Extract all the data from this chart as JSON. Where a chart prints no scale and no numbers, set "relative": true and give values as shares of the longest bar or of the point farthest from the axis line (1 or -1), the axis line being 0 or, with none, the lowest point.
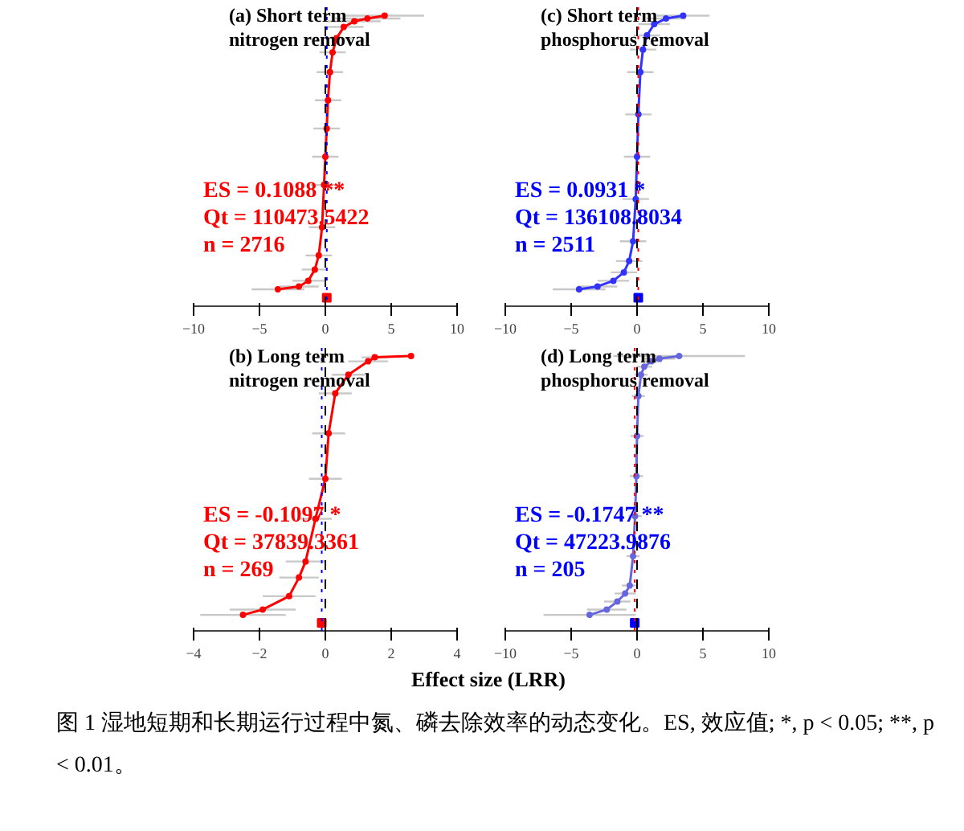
{
  "chart_data": [
    {
      "type": "line",
      "title": "(a) Short term\nnitrogen removal",
      "relative": true,
      "xlim": [
        -10,
        10
      ],
      "xticks": [
        -10,
        -5,
        0,
        5,
        10
      ],
      "tick_labels": "x",
      "marker": "circle",
      "ref_lines": [
        {
          "axis": "x",
          "value": 0,
          "color": "#000000",
          "line_style": "dashed"
        },
        {
          "axis": "x",
          "value": 0.1088,
          "color": "#0000ff",
          "line_style": "dotted"
        }
      ],
      "annotations": [
        "ES = 0.1088 **",
        "Qt = 110473.5422",
        "n = 2716"
      ],
      "series": [
        {
          "type": "line",
          "color": "#ff0000",
          "x": [
            -3.6,
            -2.0,
            -1.3,
            -0.8,
            -0.5,
            -0.25,
            -0.1,
            0.0,
            0.1,
            0.2,
            0.35,
            0.55,
            0.85,
            1.4,
            2.2,
            3.2,
            4.5
          ],
          "values": [
            0.03,
            0.04,
            0.06,
            0.1,
            0.15,
            0.25,
            0.4,
            0.5,
            0.6,
            0.7,
            0.8,
            0.87,
            0.92,
            0.96,
            0.98,
            0.99,
            1.0
          ],
          "xerrors": [
            2,
            1.5,
            1.2,
            1,
            1,
            1,
            1,
            1,
            1,
            1,
            1,
            1,
            1.2,
            1.5,
            2,
            2.5,
            3
          ]
        },
        {
          "type": "scatter",
          "color": "#ff0000",
          "marker": "square",
          "x": [
            0.1088
          ],
          "values": [
            0
          ]
        }
      ]
    },
    {
      "type": "line",
      "title": "(c) Short term\nphosphorus removal",
      "relative": true,
      "xlim": [
        -10,
        10
      ],
      "xticks": [
        -10,
        -5,
        0,
        5,
        10
      ],
      "tick_labels": "x",
      "marker": "circle",
      "ref_lines": [
        {
          "axis": "x",
          "value": 0,
          "color": "#000000",
          "line_style": "dashed"
        },
        {
          "axis": "x",
          "value": 0.0931,
          "color": "#ff0000",
          "line_style": "dotted"
        }
      ],
      "annotations": [
        "ES = 0.0931 *",
        "Qt = 136108.8034",
        "n = 2511"
      ],
      "series": [
        {
          "type": "line",
          "color": "#3333ff",
          "x": [
            -4.4,
            -3.0,
            -1.8,
            -1.0,
            -0.6,
            -0.3,
            -0.1,
            0.0,
            0.1,
            0.25,
            0.45,
            0.75,
            1.3,
            2.2,
            3.5
          ],
          "values": [
            0.03,
            0.04,
            0.06,
            0.09,
            0.13,
            0.2,
            0.35,
            0.5,
            0.65,
            0.8,
            0.88,
            0.93,
            0.97,
            0.99,
            1.0
          ],
          "xerrors": [
            2,
            1.5,
            1.2,
            1,
            1,
            1,
            1,
            1,
            1,
            1,
            1,
            1,
            1.2,
            1.5,
            2
          ]
        },
        {
          "type": "scatter",
          "color": "#0000ff",
          "marker": "square",
          "x": [
            0.0931
          ],
          "values": [
            0
          ]
        }
      ]
    },
    {
      "type": "line",
      "title": "(b) Long term\nnitrogen removal",
      "xlabel": "Effect size (LRR)",
      "relative": true,
      "xlim": [
        -4,
        4
      ],
      "xticks": [
        -4,
        -2,
        0,
        2,
        4
      ],
      "tick_labels": "x",
      "marker": "circle",
      "ref_lines": [
        {
          "axis": "x",
          "value": 0,
          "color": "#000000",
          "line_style": "dashed"
        },
        {
          "axis": "x",
          "value": -0.1097,
          "color": "#0000ff",
          "line_style": "dotted"
        }
      ],
      "annotations": [
        "ES = -0.1097 *",
        "Qt = 37839.3361",
        "n = 269"
      ],
      "series": [
        {
          "type": "line",
          "color": "#ff0000",
          "x": [
            -2.5,
            -1.9,
            -1.1,
            -0.8,
            -0.6,
            -0.3,
            0.0,
            0.1,
            0.3,
            0.7,
            1.3,
            1.5,
            2.6
          ],
          "values": [
            0.03,
            0.05,
            0.1,
            0.17,
            0.23,
            0.39,
            0.54,
            0.71,
            0.86,
            0.93,
            0.98,
            0.995,
            1.0
          ],
          "xerrors": [
            1.3,
            1,
            0.8,
            0.6,
            0.6,
            0.5,
            0.5,
            0.5,
            0.5,
            0.5,
            0.6,
            0.4,
            null
          ]
        },
        {
          "type": "scatter",
          "color": "#ff0000",
          "marker": "square",
          "x": [
            -0.1097
          ],
          "values": [
            0
          ]
        }
      ]
    },
    {
      "type": "line",
      "title": "(d) Long term\nphosphorus removal",
      "relative": true,
      "xlim": [
        -10,
        10
      ],
      "xticks": [
        -10,
        -5,
        0,
        5,
        10
      ],
      "tick_labels": "x",
      "marker": "circle",
      "ref_lines": [
        {
          "axis": "x",
          "value": 0,
          "color": "#000000",
          "line_style": "dashed"
        },
        {
          "axis": "x",
          "value": -0.1747,
          "color": "#ff0000",
          "line_style": "dotted"
        }
      ],
      "annotations": [
        "ES = -0.1747 **",
        "Qt = 47223.9876",
        "n = 205"
      ],
      "series": [
        {
          "type": "line",
          "color": "#6666dd",
          "x": [
            -3.6,
            -2.3,
            -1.5,
            -0.9,
            -0.55,
            -0.3,
            -0.15,
            -0.05,
            0.0,
            0.1,
            0.3,
            0.55,
            1.1,
            1.7,
            3.2
          ],
          "values": [
            0.03,
            0.05,
            0.08,
            0.11,
            0.14,
            0.25,
            0.4,
            0.55,
            0.7,
            0.85,
            0.93,
            0.96,
            0.98,
            0.99,
            1.0
          ],
          "xerrors": [
            3.5,
            1.5,
            1,
            0.8,
            0.6,
            0.5,
            0.5,
            0.5,
            0.5,
            0.5,
            0.5,
            0.6,
            0.8,
            1.2,
            5
          ]
        },
        {
          "type": "scatter",
          "color": "#0000ff",
          "marker": "square",
          "x": [
            -0.1747
          ],
          "values": [
            0
          ]
        }
      ]
    },
    {
      "type": "other",
      "annotations": [
        "图 1  湿地短期和长期运行过程中氮、磷去除效率的动态变化。ES, 效应值; *, p < 0.05; **, p < 0.01。"
      ]
    }
  ]
}
